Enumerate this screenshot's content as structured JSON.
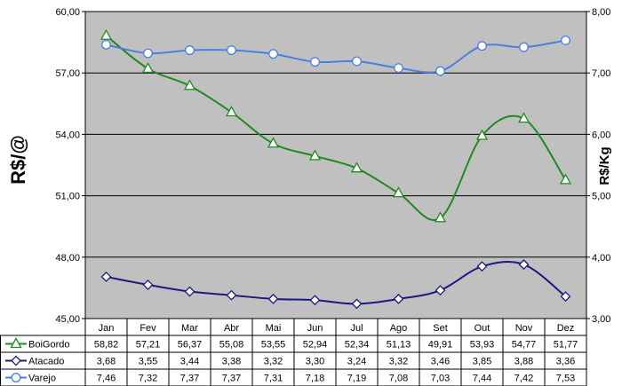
{
  "chart_data": {
    "type": "line",
    "categories": [
      "Jan",
      "Fev",
      "Mar",
      "Abr",
      "Mai",
      "Jun",
      "Jul",
      "Ago",
      "Set",
      "Out",
      "Nov",
      "Dez"
    ],
    "ylabel": "R$/@",
    "ylabel_right": "R$/Kg",
    "ylim": [
      45,
      60
    ],
    "ylim_right": [
      3,
      8
    ],
    "yticks": [
      "45,00",
      "48,00",
      "51,00",
      "54,00",
      "57,00",
      "60,00"
    ],
    "yticks_right": [
      "3,00",
      "4,00",
      "5,00",
      "6,00",
      "7,00",
      "8,00"
    ],
    "series": [
      {
        "name": "BoiGordo",
        "axis": "left",
        "marker": "triangle",
        "color": "#1f8a1f",
        "values": [
          58.82,
          57.21,
          56.37,
          55.08,
          53.55,
          52.94,
          52.34,
          51.13,
          49.91,
          53.93,
          54.77,
          51.77
        ],
        "labels": [
          "58,82",
          "57,21",
          "56,37",
          "55,08",
          "53,55",
          "52,94",
          "52,34",
          "51,13",
          "49,91",
          "53,93",
          "54,77",
          "51,77"
        ]
      },
      {
        "name": "Atacado",
        "axis": "right",
        "marker": "diamond",
        "color": "#1a1a80",
        "values": [
          3.68,
          3.55,
          3.44,
          3.38,
          3.32,
          3.3,
          3.24,
          3.32,
          3.46,
          3.85,
          3.88,
          3.36
        ],
        "labels": [
          "3,68",
          "3,55",
          "3,44",
          "3,38",
          "3,32",
          "3,30",
          "3,24",
          "3,32",
          "3,46",
          "3,85",
          "3,88",
          "3,36"
        ]
      },
      {
        "name": "Varejo",
        "axis": "right",
        "marker": "circle",
        "color": "#4a7fe0",
        "values": [
          7.46,
          7.32,
          7.37,
          7.37,
          7.31,
          7.18,
          7.19,
          7.08,
          7.03,
          7.44,
          7.42,
          7.53
        ],
        "labels": [
          "7,46",
          "7,32",
          "7,37",
          "7,37",
          "7,31",
          "7,18",
          "7,19",
          "7,08",
          "7,03",
          "7,44",
          "7,42",
          "7,53"
        ]
      }
    ],
    "grid": true,
    "legend": "data-table",
    "colors": {
      "plot_bg": "#c0c0c0",
      "grid": "#000000"
    }
  }
}
